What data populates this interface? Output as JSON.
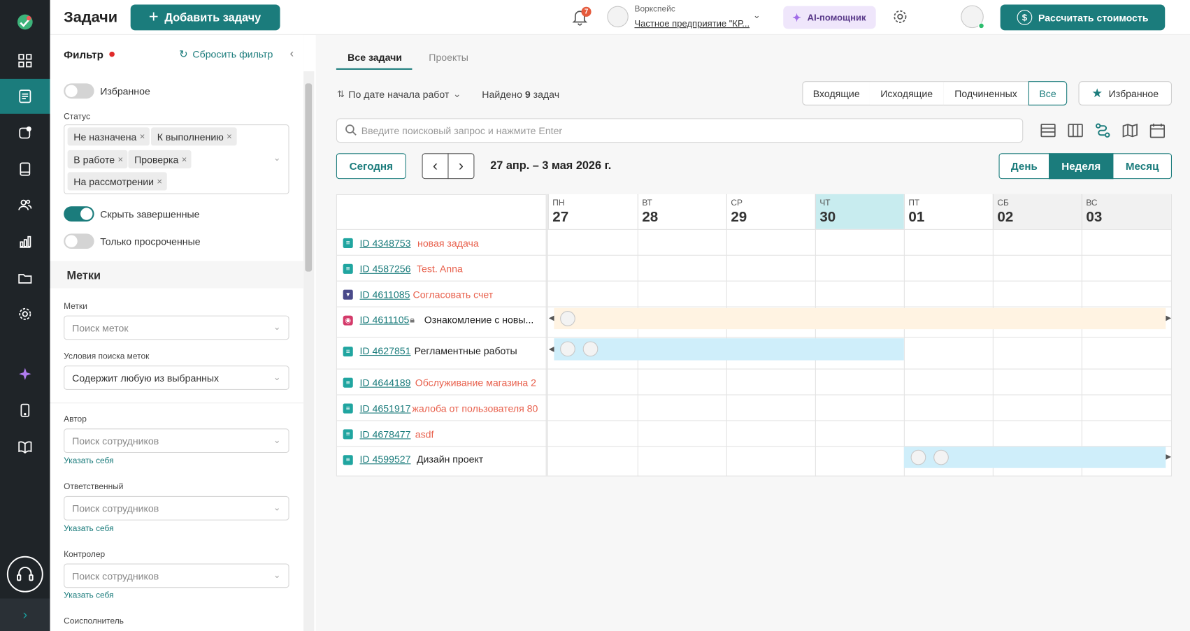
{
  "app": {
    "title": "Задачи",
    "add_task": "Добавить задачу"
  },
  "header": {
    "notification_count": "7",
    "workspace_label": "Воркспейс",
    "workspace_name": "Частное предприятие \"КР...",
    "ai_assistant": "AI-помощник",
    "calc_cost": "Рассчитать стоимость"
  },
  "rail": {
    "items": [
      "logo-icon",
      "grid-icon",
      "tasks-icon",
      "chat-icon",
      "book-icon",
      "people-icon",
      "chart-icon",
      "folder-icon",
      "gear-icon",
      "sparkle-icon",
      "phone-icon",
      "open-book-icon",
      "headset-icon",
      "expand-icon"
    ],
    "active": "tasks-icon"
  },
  "filter": {
    "title": "Фильтр",
    "reset": "Сбросить фильтр",
    "favorites": "Избранное",
    "status_label": "Статус",
    "statuses": [
      "Не назначена",
      "К выполнению",
      "В работе",
      "Проверка",
      "На рассмотрении"
    ],
    "hide_done": "Скрыть завершенные",
    "only_overdue": "Только просроченные",
    "tags_section": "Метки",
    "tags_label": "Метки",
    "tags_placeholder": "Поиск меток",
    "tag_condition_label": "Условия поиска меток",
    "tag_condition_value": "Содержит любую из выбранных",
    "author_label": "Автор",
    "responsible_label": "Ответственный",
    "controller_label": "Контролер",
    "coexec_label": "Соисполнитель",
    "employee_placeholder": "Поиск сотрудников",
    "assign_self": "Указать себя"
  },
  "tabs": {
    "all": "Все задачи",
    "projects": "Проекты"
  },
  "toolbar": {
    "sort": "По дате начала работ",
    "found_prefix": "Найдено ",
    "found_count": "9",
    "found_suffix": " задач",
    "scopes": [
      "Входящие",
      "Исходящие",
      "Подчиненных",
      "Все"
    ],
    "scope_active": "Все",
    "favorites": "Избранное",
    "search_placeholder": "Введите поисковый запрос и нажмите Enter"
  },
  "calendar": {
    "today": "Сегодня",
    "range": "27 апр. – 3 мая 2026 г.",
    "views": [
      "День",
      "Неделя",
      "Месяц"
    ],
    "view_active": "Неделя",
    "days": [
      {
        "dn": "ПН",
        "dd": "27"
      },
      {
        "dn": "ВТ",
        "dd": "28"
      },
      {
        "dn": "СР",
        "dd": "29"
      },
      {
        "dn": "ЧТ",
        "dd": "30",
        "today": true
      },
      {
        "dn": "ПТ",
        "dd": "01"
      },
      {
        "dn": "СБ",
        "dd": "02"
      },
      {
        "dn": "ВС",
        "dd": "03"
      }
    ]
  },
  "tasks": [
    {
      "id": "ID 4348753",
      "name": "новая задача",
      "overdue": true
    },
    {
      "id": "ID 4587256",
      "name": "Test. Anna",
      "overdue": true
    },
    {
      "id": "ID 4611085",
      "name": "Согласовать счет",
      "overdue": true
    },
    {
      "id": "ID 4611105",
      "name": "Ознакомление с новы...",
      "overdue": false
    },
    {
      "id": "ID 4627851",
      "name": "Регламентные работы",
      "overdue": false
    },
    {
      "id": "ID 4644189",
      "name": "Обслуживание магазина 2",
      "overdue": true
    },
    {
      "id": "ID 4651917",
      "name": "жалоба от пользователя 80",
      "overdue": true
    },
    {
      "id": "ID 4678477",
      "name": "asdf",
      "overdue": true
    },
    {
      "id": "ID 4599527",
      "name": "Дизайн проект",
      "overdue": false
    }
  ],
  "colors": {
    "accent": "#1b7c7c",
    "overdue": "#e8604c",
    "today": "#c8ecef",
    "bar_orange": "#fff3e2",
    "bar_blue": "#cfeefa"
  }
}
